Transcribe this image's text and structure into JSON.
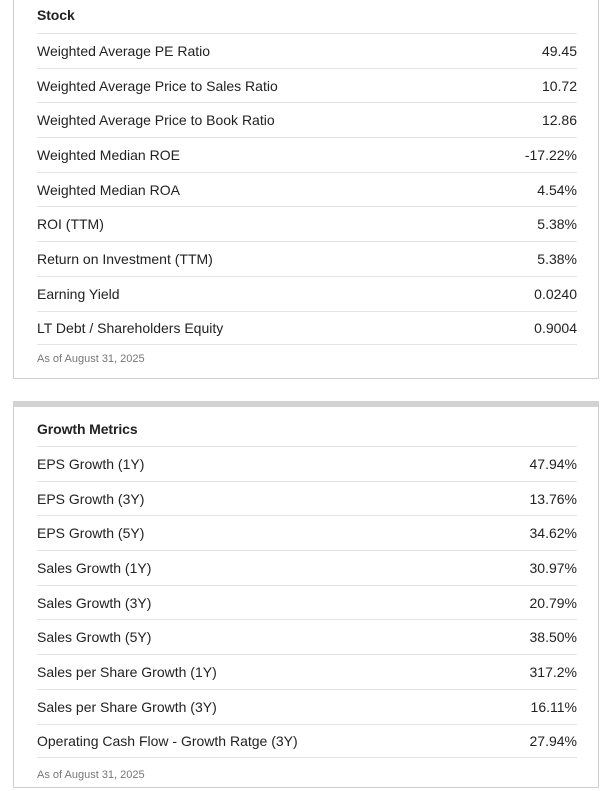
{
  "stock": {
    "title": "Stock",
    "rows": [
      {
        "label": "Weighted Average PE Ratio",
        "value": "49.45"
      },
      {
        "label": "Weighted Average Price to Sales Ratio",
        "value": "10.72"
      },
      {
        "label": "Weighted Average Price to Book Ratio",
        "value": "12.86"
      },
      {
        "label": "Weighted Median ROE",
        "value": "-17.22%"
      },
      {
        "label": "Weighted Median ROA",
        "value": "4.54%"
      },
      {
        "label": "ROI (TTM)",
        "value": "5.38%"
      },
      {
        "label": "Return on Investment (TTM)",
        "value": "5.38%"
      },
      {
        "label": "Earning Yield",
        "value": "0.0240"
      },
      {
        "label": "LT Debt / Shareholders Equity",
        "value": "0.9004"
      }
    ],
    "as_of": "As of August 31, 2025"
  },
  "growth": {
    "title": "Growth Metrics",
    "rows": [
      {
        "label": "EPS Growth (1Y)",
        "value": "47.94%"
      },
      {
        "label": "EPS Growth (3Y)",
        "value": "13.76%"
      },
      {
        "label": "EPS Growth (5Y)",
        "value": "34.62%"
      },
      {
        "label": "Sales Growth (1Y)",
        "value": "30.97%"
      },
      {
        "label": "Sales Growth (3Y)",
        "value": "20.79%"
      },
      {
        "label": "Sales Growth (5Y)",
        "value": "38.50%"
      },
      {
        "label": "Sales per Share Growth (1Y)",
        "value": "317.2%"
      },
      {
        "label": "Sales per Share Growth (3Y)",
        "value": "16.11%"
      },
      {
        "label": "Operating Cash Flow - Growth Ratge (3Y)",
        "value": "27.94%"
      }
    ],
    "as_of": "As of August 31, 2025"
  }
}
